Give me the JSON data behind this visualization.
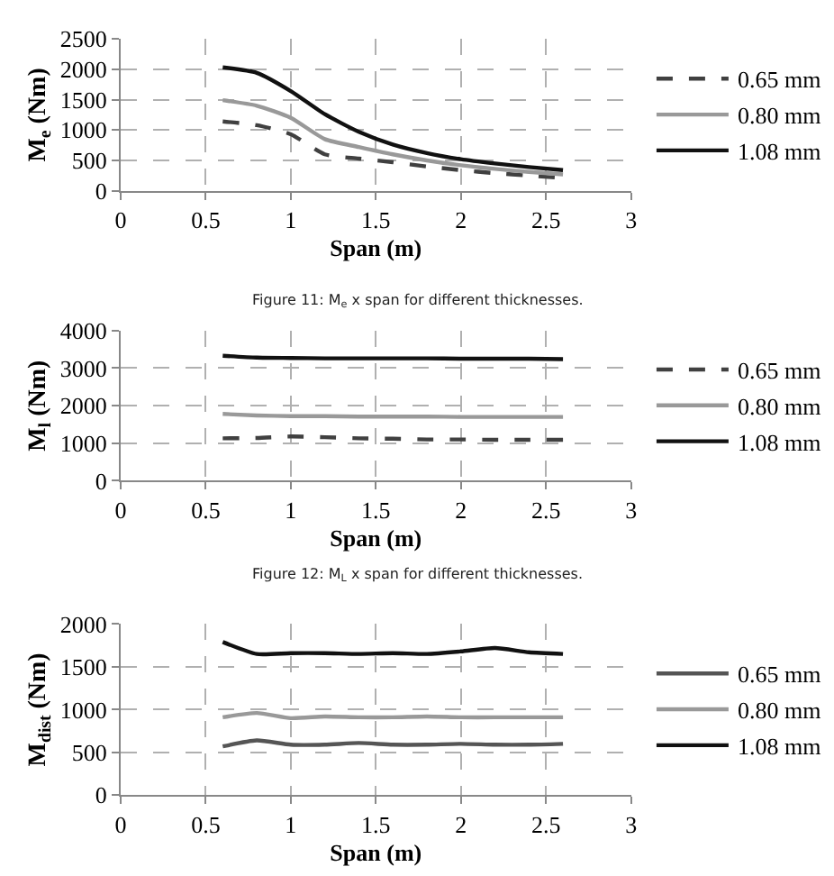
{
  "chart_data": [
    {
      "type": "line",
      "xlabel": "Span (m)",
      "ylabel": "M$_{e}$ (Nm)",
      "x": [
        0.6,
        0.8,
        1.0,
        1.2,
        1.4,
        1.6,
        1.8,
        2.0,
        2.2,
        2.4,
        2.6
      ],
      "xlim": [
        0,
        3
      ],
      "xticks": [
        0,
        0.5,
        1,
        1.5,
        2,
        2.5,
        3
      ],
      "ylim": [
        0,
        2500
      ],
      "yticks": [
        0,
        500,
        1000,
        1500,
        2000,
        2500
      ],
      "grid": true,
      "legend": "right",
      "annotations": [
        "Figure 11: M$_{e}$ x span for different thicknesses."
      ],
      "series": [
        {
          "name": "0.65 mm",
          "color": "#404040",
          "line_style": "dashed",
          "values": [
            1140,
            1080,
            930,
            600,
            530,
            470,
            400,
            340,
            290,
            250,
            210
          ]
        },
        {
          "name": "0.80 mm",
          "color": "#999999",
          "line_style": "solid",
          "values": [
            1490,
            1400,
            1200,
            850,
            720,
            600,
            500,
            420,
            360,
            310,
            270
          ]
        },
        {
          "name": "1.08 mm",
          "color": "#111111",
          "line_style": "solid",
          "values": [
            2030,
            1940,
            1640,
            1260,
            970,
            760,
            620,
            520,
            450,
            390,
            340
          ]
        }
      ]
    },
    {
      "type": "line",
      "xlabel": "Span (m)",
      "ylabel": "M$_{l}$ (Nm)",
      "x": [
        0.6,
        0.8,
        1.0,
        1.2,
        1.4,
        1.6,
        1.8,
        2.0,
        2.2,
        2.4,
        2.6
      ],
      "xlim": [
        0,
        3
      ],
      "xticks": [
        0,
        0.5,
        1,
        1.5,
        2,
        2.5,
        3
      ],
      "ylim": [
        0,
        4000
      ],
      "yticks": [
        0,
        1000,
        2000,
        3000,
        4000
      ],
      "grid": true,
      "legend": "right",
      "annotations": [
        "Figure 12: M$_{L}$ x span for different thicknesses."
      ],
      "series": [
        {
          "name": "0.65 mm",
          "color": "#404040",
          "line_style": "dashed",
          "values": [
            1130,
            1140,
            1180,
            1160,
            1130,
            1120,
            1100,
            1100,
            1090,
            1090,
            1090
          ]
        },
        {
          "name": "0.80 mm",
          "color": "#999999",
          "line_style": "solid",
          "values": [
            1780,
            1740,
            1720,
            1720,
            1710,
            1710,
            1710,
            1700,
            1700,
            1700,
            1700
          ]
        },
        {
          "name": "1.08 mm",
          "color": "#111111",
          "line_style": "solid",
          "values": [
            3330,
            3280,
            3270,
            3260,
            3260,
            3260,
            3260,
            3250,
            3250,
            3250,
            3240
          ]
        }
      ]
    },
    {
      "type": "line",
      "xlabel": "Span (m)",
      "ylabel": "M$_{dist}$ (Nm)",
      "x": [
        0.6,
        0.8,
        1.0,
        1.2,
        1.4,
        1.6,
        1.8,
        2.0,
        2.2,
        2.4,
        2.6
      ],
      "xlim": [
        0,
        3
      ],
      "xticks": [
        0,
        0.5,
        1,
        1.5,
        2,
        2.5,
        3
      ],
      "ylim": [
        0,
        2000
      ],
      "yticks": [
        0,
        500,
        1000,
        1500,
        2000
      ],
      "grid": true,
      "legend": "right",
      "series": [
        {
          "name": "0.65 mm",
          "color": "#555555",
          "line_style": "solid",
          "values": [
            570,
            640,
            590,
            590,
            610,
            590,
            590,
            600,
            590,
            590,
            600
          ]
        },
        {
          "name": "0.80 mm",
          "color": "#999999",
          "line_style": "solid",
          "values": [
            910,
            960,
            900,
            920,
            910,
            910,
            920,
            910,
            910,
            910,
            910
          ]
        },
        {
          "name": "1.08 mm",
          "color": "#111111",
          "line_style": "solid",
          "values": [
            1790,
            1650,
            1660,
            1660,
            1650,
            1660,
            1650,
            1680,
            1720,
            1670,
            1650
          ]
        }
      ]
    }
  ]
}
